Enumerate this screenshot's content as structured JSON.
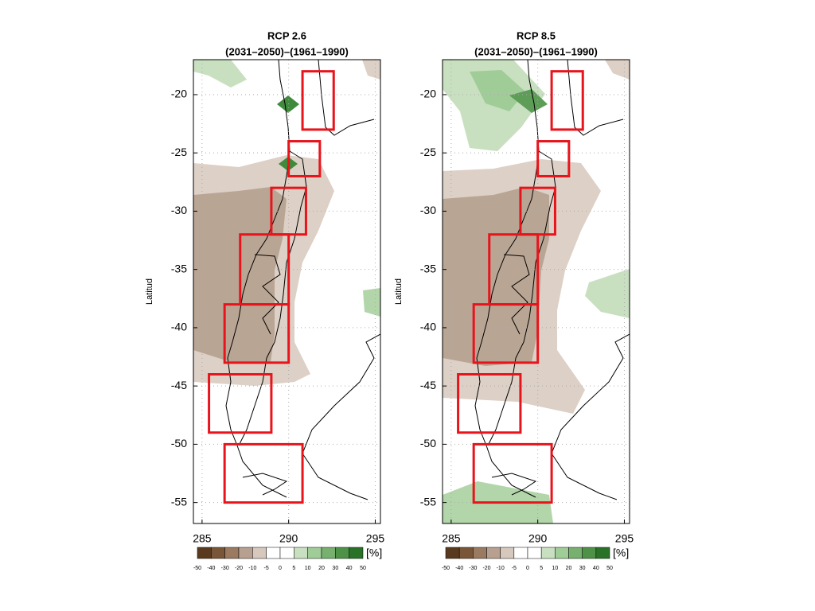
{
  "chart_data": [
    {
      "type": "map",
      "title": "RCP 2.6",
      "subtitle": "(2031–2050)–(1961–1990)",
      "ylabel": "Latitud",
      "xlim": [
        284.5,
        295.3
      ],
      "ylim": [
        -56.8,
        -17
      ],
      "xticks": [
        285,
        290,
        295
      ],
      "yticks": [
        -20,
        -25,
        -30,
        -35,
        -40,
        -45,
        -50,
        -55
      ],
      "grid": true,
      "region_color": "#e8141c",
      "regions": [
        {
          "lon": [
            290.8,
            292.6
          ],
          "lat": [
            -23,
            -18
          ]
        },
        {
          "lon": [
            290,
            291.8
          ],
          "lat": [
            -27,
            -24
          ]
        },
        {
          "lon": [
            289,
            291
          ],
          "lat": [
            -32,
            -28
          ]
        },
        {
          "lon": [
            287.2,
            290
          ],
          "lat": [
            -38,
            -32
          ]
        },
        {
          "lon": [
            286.3,
            290
          ],
          "lat": [
            -43,
            -38
          ]
        },
        {
          "lon": [
            285.4,
            289
          ],
          "lat": [
            -49,
            -44
          ]
        },
        {
          "lon": [
            286.3,
            290.8
          ],
          "lat": [
            -55,
            -50
          ]
        }
      ],
      "colorbar_ticks": [
        -50,
        -40,
        -30,
        -20,
        -10,
        -5,
        0,
        5,
        10,
        20,
        30,
        40,
        50
      ],
      "colorbar_colors": [
        "#5a3a1e",
        "#7a5638",
        "#9a7a60",
        "#b8a090",
        "#d6c8bc",
        "#ffffff",
        "#ffffff",
        "#c8e0c0",
        "#a0cc98",
        "#78b070",
        "#4e9248",
        "#2a7228"
      ],
      "colorbar_label": "[%]"
    },
    {
      "type": "map",
      "title": "RCP 8.5",
      "subtitle": "(2031–2050)–(1961–1990)",
      "ylabel": "Latitud",
      "xlim": [
        284.5,
        295.3
      ],
      "ylim": [
        -56.8,
        -17
      ],
      "xticks": [
        285,
        290,
        295
      ],
      "yticks": [
        -20,
        -25,
        -30,
        -35,
        -40,
        -45,
        -50,
        -55
      ],
      "grid": true,
      "region_color": "#e8141c",
      "regions": [
        {
          "lon": [
            290.8,
            292.6
          ],
          "lat": [
            -23,
            -18
          ]
        },
        {
          "lon": [
            290,
            291.8
          ],
          "lat": [
            -27,
            -24
          ]
        },
        {
          "lon": [
            289,
            291
          ],
          "lat": [
            -32,
            -28
          ]
        },
        {
          "lon": [
            287.2,
            290
          ],
          "lat": [
            -38,
            -32
          ]
        },
        {
          "lon": [
            286.3,
            290
          ],
          "lat": [
            -43,
            -38
          ]
        },
        {
          "lon": [
            285.4,
            289
          ],
          "lat": [
            -49,
            -44
          ]
        },
        {
          "lon": [
            286.3,
            290.8
          ],
          "lat": [
            -55,
            -50
          ]
        }
      ],
      "colorbar_ticks": [
        -50,
        -40,
        -30,
        -20,
        -10,
        -5,
        0,
        5,
        10,
        20,
        30,
        40,
        50
      ],
      "colorbar_colors": [
        "#5a3a1e",
        "#7a5638",
        "#9a7a60",
        "#b8a090",
        "#d6c8bc",
        "#ffffff",
        "#ffffff",
        "#c8e0c0",
        "#a0cc98",
        "#78b070",
        "#4e9248",
        "#2a7228"
      ],
      "colorbar_label": "[%]"
    }
  ]
}
